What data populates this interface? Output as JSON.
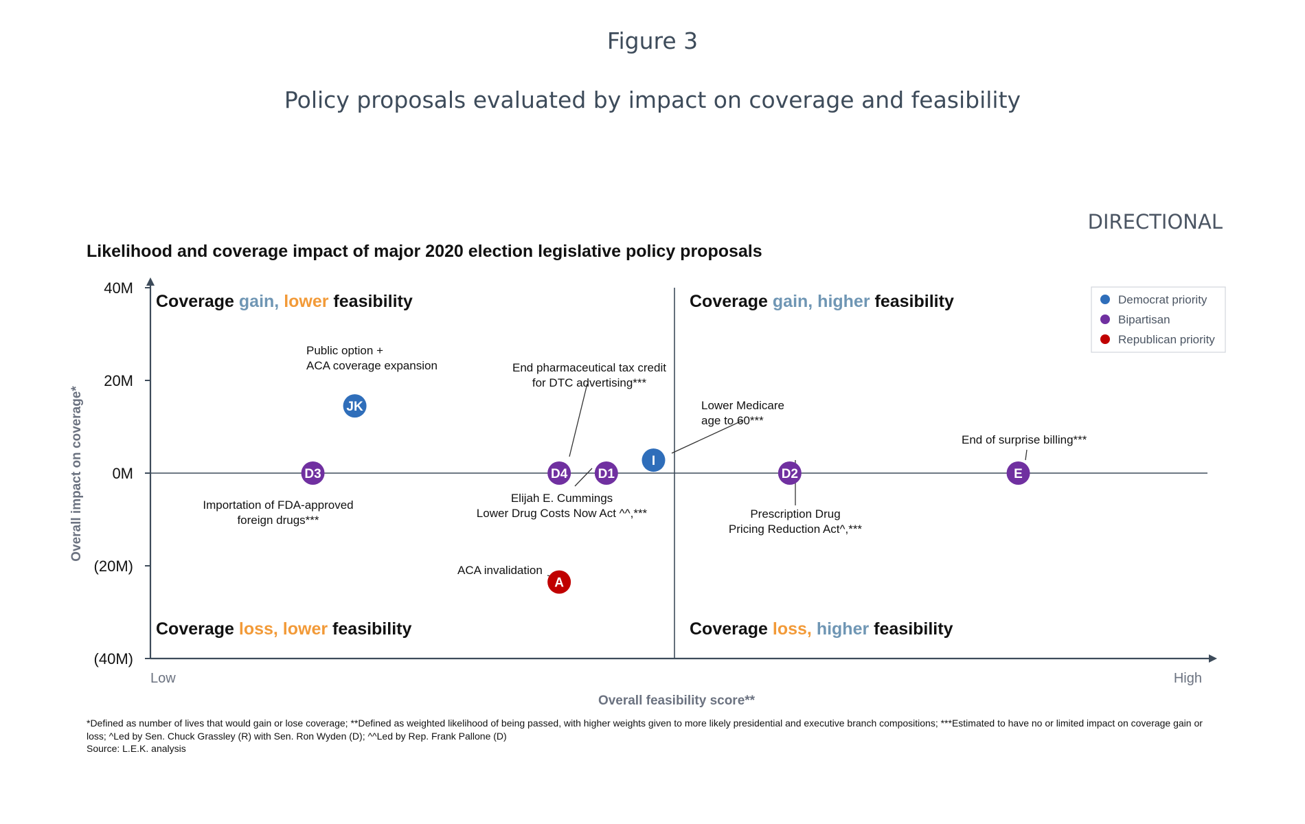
{
  "figure_label": "Figure 3",
  "subtitle": "Policy proposals evaluated by impact on coverage and feasibility",
  "directional": "DIRECTIONAL",
  "chart_data": {
    "type": "scatter",
    "title": "Likelihood and coverage impact of major 2020 election legislative policy proposals",
    "xlabel": "Overall feasibility score**",
    "ylabel": "Overall impact on coverage*",
    "xlim": [
      0,
      100
    ],
    "ylim": [
      -40,
      40
    ],
    "x_tick_labels": {
      "low": "Low",
      "high": "High"
    },
    "y_ticks": [
      {
        "value": 40,
        "label": "40M"
      },
      {
        "value": 20,
        "label": "20M"
      },
      {
        "value": 0,
        "label": "0M"
      },
      {
        "value": -20,
        "label": "(20M)"
      },
      {
        "value": -40,
        "label": "(40M)"
      }
    ],
    "x_divider": 50,
    "y_divider": 0,
    "quadrants": [
      {
        "position": "top-left",
        "parts": [
          {
            "text": "Coverage ",
            "color": "#111111"
          },
          {
            "text": "gain, ",
            "color": "#6f96b4"
          },
          {
            "text": "lower",
            "color": "#f29a38"
          },
          {
            "text": " feasibility",
            "color": "#111111"
          }
        ]
      },
      {
        "position": "top-right",
        "parts": [
          {
            "text": "Coverage ",
            "color": "#111111"
          },
          {
            "text": "gain, higher",
            "color": "#6f96b4"
          },
          {
            "text": " feasibility",
            "color": "#111111"
          }
        ]
      },
      {
        "position": "bottom-left",
        "parts": [
          {
            "text": "Coverage ",
            "color": "#111111"
          },
          {
            "text": "loss, lower",
            "color": "#f29a38"
          },
          {
            "text": " feasibility",
            "color": "#111111"
          }
        ]
      },
      {
        "position": "bottom-right",
        "parts": [
          {
            "text": "Coverage ",
            "color": "#111111"
          },
          {
            "text": "loss, ",
            "color": "#f29a38"
          },
          {
            "text": "higher",
            "color": "#6f96b4"
          },
          {
            "text": " feasibility",
            "color": "#111111"
          }
        ]
      }
    ],
    "legend": {
      "placement": "top-right",
      "items": [
        {
          "name": "Democrat priority",
          "color": "#2f6eba"
        },
        {
          "name": "Bipartisan",
          "color": "#7030a0"
        },
        {
          "name": "Republican priority",
          "color": "#c00000"
        }
      ]
    },
    "points": [
      {
        "id": "JK",
        "x": 19.5,
        "y": 14.5,
        "group": "Democrat priority",
        "label": [
          "Public option +",
          "ACA coverage expansion"
        ],
        "leader": false
      },
      {
        "id": "D3",
        "x": 15.5,
        "y": 0,
        "group": "Bipartisan",
        "label": [
          "Importation of FDA-approved",
          "foreign drugs***"
        ],
        "leader": false
      },
      {
        "id": "D4",
        "x": 39,
        "y": 0,
        "group": "Bipartisan",
        "label": [
          "End pharmaceutical tax credit",
          "for DTC advertising***"
        ],
        "leader": true
      },
      {
        "id": "D1",
        "x": 43.5,
        "y": 0,
        "group": "Bipartisan",
        "label": [
          "Elijah E. Cummings",
          "Lower Drug Costs Now Act ^^,***"
        ],
        "leader": true
      },
      {
        "id": "I",
        "x": 48,
        "y": 2.8,
        "group": "Democrat priority",
        "label": [
          "Lower Medicare",
          "age to 60***"
        ],
        "leader": true
      },
      {
        "id": "D2",
        "x": 61,
        "y": 0,
        "group": "Bipartisan",
        "label": [
          "Prescription Drug",
          "Pricing Reduction Act^,***"
        ],
        "leader": true
      },
      {
        "id": "E",
        "x": 82.8,
        "y": 0,
        "group": "Bipartisan",
        "label": [
          "End of surprise billing***"
        ],
        "leader": true
      },
      {
        "id": "A",
        "x": 39,
        "y": -23.5,
        "group": "Republican priority",
        "label": [
          "ACA invalidation"
        ],
        "leader": true
      }
    ]
  },
  "footnote": "*Defined as number of lives that would gain or lose coverage; **Defined as weighted likelihood of being passed, with higher weights given to more likely presidential and executive branch compositions; ***Estimated to have no or limited impact on coverage gain or loss; ^Led by Sen. Chuck Grassley (R) with Sen. Ron Wyden (D); ^^Led by Rep. Frank Pallone (D)",
  "source": "Source: L.E.K. analysis"
}
